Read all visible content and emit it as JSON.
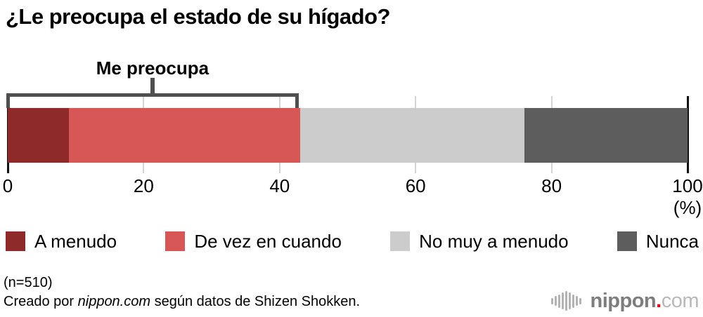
{
  "title": "¿Le preocupa el estado de su hígado?",
  "chart_data": {
    "type": "bar",
    "subtype": "horizontal_stacked_percentage",
    "title": "¿Le preocupa el estado de su hígado?",
    "series": [
      {
        "name": "A menudo",
        "value": 9,
        "color": "#8e2a2a"
      },
      {
        "name": "De vez en cuando",
        "value": 34,
        "color": "#d75757"
      },
      {
        "name": "No muy a menudo",
        "value": 33,
        "color": "#cccccc"
      },
      {
        "name": "Nunca",
        "value": 24,
        "color": "#5d5d5d"
      }
    ],
    "annotation": {
      "label": "Me preocupa",
      "from_pct": 0,
      "to_pct": 43
    },
    "x_ticks": [
      0,
      20,
      40,
      60,
      80,
      100
    ],
    "xlim": [
      0,
      100
    ],
    "x_unit": "(%)",
    "grid": true,
    "legend_position": "bottom"
  },
  "footer": {
    "sample": "(n=510)",
    "credit_prefix": "Creado por ",
    "credit_source": "nippon.com",
    "credit_suffix": " según datos de Shizen Shokken."
  },
  "logo": {
    "name": "nippon",
    "dot": ".",
    "tld": "com",
    "dot_color": "#e60012"
  }
}
